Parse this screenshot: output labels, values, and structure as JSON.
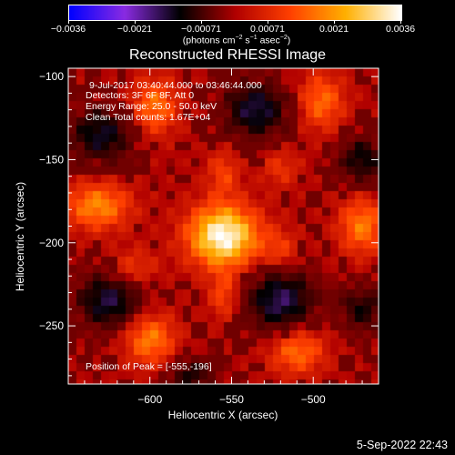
{
  "colorbar": {
    "ticks": [
      "-0.0036",
      "-0.0021",
      "-0.00071",
      "0.00071",
      "0.0021",
      "0.0036"
    ],
    "range": [
      -0.0036,
      0.0036
    ],
    "colors": [
      "#0000ff",
      "#8a2be2",
      "#000000",
      "#b00000",
      "#ff4000",
      "#ffb000",
      "#ffffff"
    ]
  },
  "chart_data": {
    "type": "heatmap",
    "title": "Reconstructed RHESSI Image",
    "xlabel": "Heliocentric X (arcsec)",
    "ylabel": "Heliocentric Y (arcsec)",
    "units_prefix": "(photons cm",
    "units_exp1": "−2",
    "units_mid": " s",
    "units_exp2": "−1",
    "units_mid2": " asec",
    "units_exp3": "−2",
    "units_suffix": ")",
    "xlim": [
      -650,
      -460
    ],
    "ylim": [
      -285,
      -95
    ],
    "xticks": [
      -600,
      -550,
      -500
    ],
    "yticks": [
      -100,
      -150,
      -200,
      -250
    ],
    "xtick_labels": [
      "−600",
      "−550",
      "−500"
    ],
    "ytick_labels": [
      "−100",
      "−150",
      "−200",
      "−250"
    ],
    "annotations": {
      "line1": "9-Jul-2017 03:40:44.000 to 03:46:44.000",
      "line2": "Detectors: 3F 6F 8F, Att 0",
      "line3": "Energy Range: 25.0 - 50.0 keV",
      "line4": "Clean     Total counts: 1.67E+04",
      "peak": "Position of Peak = [-555,-196]"
    },
    "peak": [
      -555,
      -196
    ],
    "sources": [
      {
        "x": -555,
        "y": -196,
        "amp": 1.0,
        "sx": 15,
        "sy": 13
      },
      {
        "x": -632,
        "y": -178,
        "amp": 0.55,
        "sx": 14,
        "sy": 10
      },
      {
        "x": -597,
        "y": -118,
        "amp": 0.48,
        "sx": 10,
        "sy": 12
      },
      {
        "x": -600,
        "y": -258,
        "amp": 0.52,
        "sx": 11,
        "sy": 11
      },
      {
        "x": -495,
        "y": -115,
        "amp": 0.45,
        "sx": 10,
        "sy": 12
      },
      {
        "x": -470,
        "y": -190,
        "amp": 0.5,
        "sx": 10,
        "sy": 12
      },
      {
        "x": -510,
        "y": -265,
        "amp": 0.48,
        "sx": 12,
        "sy": 10
      },
      {
        "x": -555,
        "y": -232,
        "amp": 0.32,
        "sx": 6,
        "sy": 10
      },
      {
        "x": -555,
        "y": -158,
        "amp": 0.3,
        "sx": 7,
        "sy": 10
      },
      {
        "x": -520,
        "y": -205,
        "amp": 0.28,
        "sx": 8,
        "sy": 9
      },
      {
        "x": -610,
        "y": -215,
        "amp": 0.28,
        "sx": 10,
        "sy": 8
      },
      {
        "x": -520,
        "y": -155,
        "amp": 0.25,
        "sx": 8,
        "sy": 8
      }
    ],
    "negatives": [
      {
        "x": -520,
        "y": -235,
        "amp": 0.55,
        "sx": 14,
        "sy": 14
      },
      {
        "x": -625,
        "y": -235,
        "amp": 0.5,
        "sx": 14,
        "sy": 12
      },
      {
        "x": -630,
        "y": -135,
        "amp": 0.45,
        "sx": 14,
        "sy": 12
      },
      {
        "x": -535,
        "y": -120,
        "amp": 0.5,
        "sx": 14,
        "sy": 12
      },
      {
        "x": -470,
        "y": -150,
        "amp": 0.4,
        "sx": 10,
        "sy": 10
      },
      {
        "x": -575,
        "y": -280,
        "amp": 0.35,
        "sx": 10,
        "sy": 8
      },
      {
        "x": -470,
        "y": -240,
        "amp": 0.35,
        "sx": 10,
        "sy": 10
      }
    ]
  },
  "timestamp": "5-Sep-2022 22:43"
}
